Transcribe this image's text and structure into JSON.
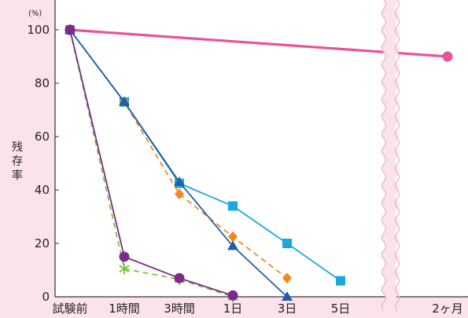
{
  "chart_data": {
    "type": "line",
    "y_unit": "(%)",
    "ylabel": "残存率",
    "ylim": [
      0,
      100
    ],
    "yticks": [
      0,
      20,
      40,
      60,
      80,
      100
    ],
    "x_labels": [
      "試験前",
      "1時間",
      "3時間",
      "1日",
      "3日",
      "5日",
      "2ヶ月"
    ],
    "axis_break_between": [
      "5日",
      "2ヶ月"
    ],
    "grid": "none",
    "series": [
      {
        "color": "#e8529b",
        "marker": "circle",
        "line_style": "solid",
        "points": [
          [
            "試験前",
            100
          ],
          [
            "2ヶ月",
            90
          ]
        ]
      },
      {
        "color": "#1aa7e0",
        "marker": "square",
        "line_style": "solid",
        "points": [
          [
            "試験前",
            100
          ],
          [
            "1時間",
            73
          ],
          [
            "3時間",
            42.5
          ],
          [
            "1日",
            34
          ],
          [
            "3日",
            20
          ],
          [
            "5日",
            6
          ]
        ]
      },
      {
        "color": "#f08a1c",
        "marker": "diamond",
        "line_style": "dashed",
        "points": [
          [
            "試験前",
            100
          ],
          [
            "1時間",
            73
          ],
          [
            "3時間",
            38.5
          ],
          [
            "1日",
            22.5
          ],
          [
            "3日",
            7
          ]
        ]
      },
      {
        "color": "#1f5ea8",
        "marker": "triangle",
        "line_style": "solid",
        "points": [
          [
            "試験前",
            100
          ],
          [
            "1時間",
            73
          ],
          [
            "3時間",
            43
          ],
          [
            "1日",
            19
          ],
          [
            "3日",
            0
          ]
        ]
      },
      {
        "color": "#7dc242",
        "marker": "asterisk",
        "line_style": "dashed",
        "points": [
          [
            "試験前",
            100
          ],
          [
            "1時間",
            10.5
          ],
          [
            "3時間",
            6.5
          ],
          [
            "1日",
            0
          ]
        ]
      },
      {
        "color": "#7b2a8c",
        "marker": "circle",
        "line_style": "solid",
        "points": [
          [
            "試験前",
            100
          ],
          [
            "1時間",
            15
          ],
          [
            "3時間",
            7
          ],
          [
            "1日",
            0.5
          ]
        ]
      }
    ]
  }
}
